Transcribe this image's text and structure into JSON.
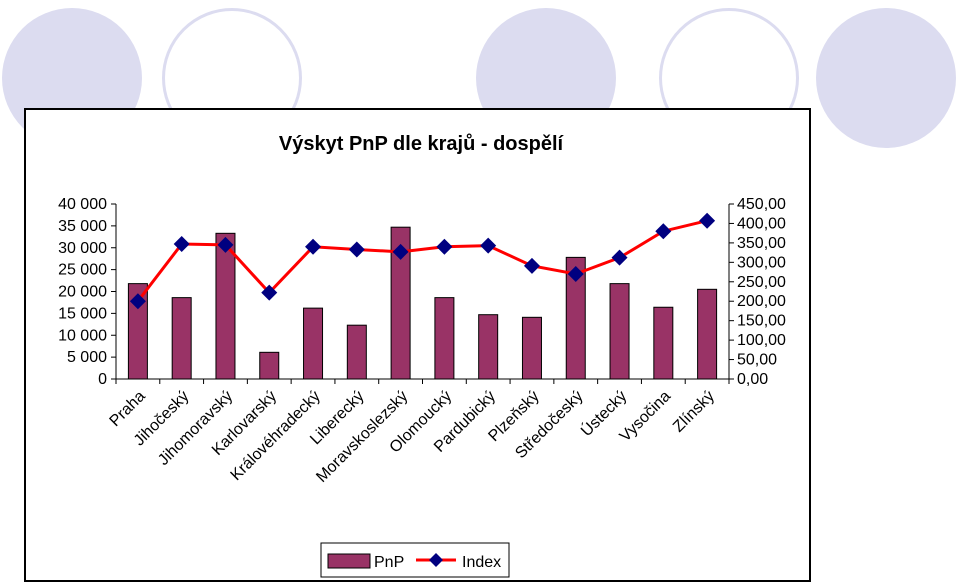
{
  "colors": {
    "background": "#ffffff",
    "decor_circle": "#dcdcf0",
    "bar_fill": "#993366",
    "bar_stroke": "#000000",
    "line": "#ff0000",
    "marker": "#000080"
  },
  "chart_data": {
    "type": "bar",
    "title": "Výskyt PnP dle krajů - dospělí",
    "categories": [
      "Praha",
      "Jihočeský",
      "Jihomoravský",
      "Karlovarský",
      "Královéhradecký",
      "Liberecký",
      "Moravskoslezský",
      "Olomoucký",
      "Pardubický",
      "Plzeňský",
      "Středočeský",
      "Ústecký",
      "Vysočina",
      "Zlínský"
    ],
    "series": [
      {
        "name": "PnP",
        "type": "bar",
        "axis": "left",
        "values": [
          21800,
          18600,
          33300,
          6100,
          16200,
          12300,
          34700,
          18600,
          14700,
          14100,
          27800,
          21800,
          16400,
          20500
        ]
      },
      {
        "name": "Index",
        "type": "line",
        "axis": "right",
        "values": [
          200,
          347,
          345,
          222,
          340,
          333,
          327,
          340,
          343,
          291,
          270,
          312,
          380,
          407
        ]
      }
    ],
    "y_left": {
      "min": 0,
      "max": 40000,
      "step": 5000,
      "ticks": [
        "0",
        "5 000",
        "10 000",
        "15 000",
        "20 000",
        "25 000",
        "30 000",
        "35 000",
        "40 000"
      ]
    },
    "y_right": {
      "min": 0,
      "max": 450,
      "step": 50,
      "ticks": [
        "0,00",
        "50,00",
        "100,00",
        "150,00",
        "200,00",
        "250,00",
        "300,00",
        "350,00",
        "400,00",
        "450,00"
      ]
    },
    "grid": false,
    "legend": {
      "position": "bottom",
      "entries": [
        "PnP",
        "Index"
      ]
    }
  }
}
